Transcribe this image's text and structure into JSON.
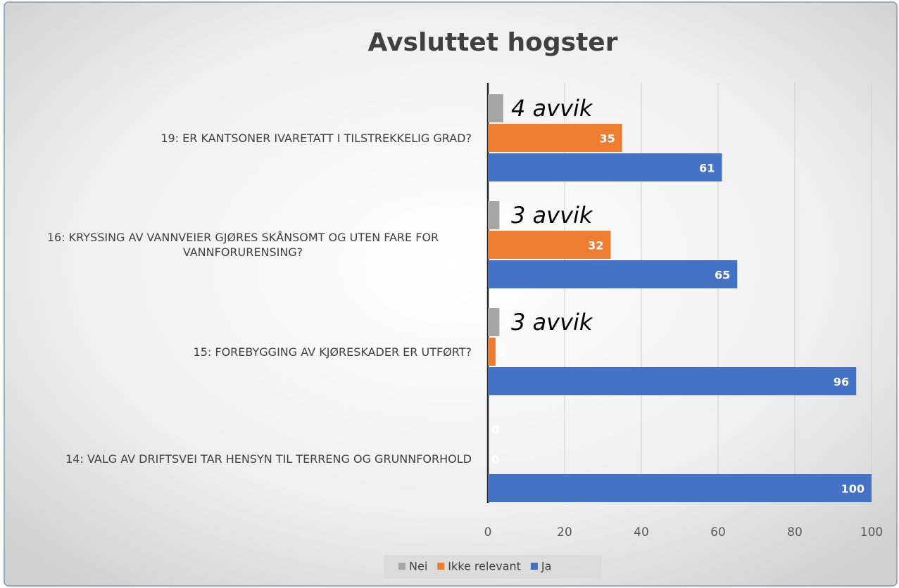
{
  "chart_data": {
    "type": "bar",
    "orientation": "horizontal",
    "title": "Avsluttet hogster",
    "categories": [
      "19: ER KANTSONER IVARETATT I TILSTREKKELIG GRAD?",
      "16: KRYSSING AV VANNVEIER GJØRES SKÅNSOMT OG UTEN FARE FOR VANNFORURENSING?",
      "15: FOREBYGGING AV KJØRESKADER ER UTFØRT?",
      "14: VALG AV DRIFTSVEI TAR HENSYN TIL TERRENG OG GRUNNFORHOLD"
    ],
    "series": [
      {
        "name": "Nei",
        "color": "#a5a5a5",
        "values": [
          4,
          3,
          3,
          0
        ]
      },
      {
        "name": "Ikke relevant",
        "color": "#ed7d31",
        "values": [
          35,
          32,
          2,
          0
        ]
      },
      {
        "name": "Ja",
        "color": "#4472c4",
        "values": [
          61,
          65,
          96,
          100
        ]
      }
    ],
    "annotations": [
      "4 avvik",
      "3 avvik",
      "3 avvik"
    ],
    "xlim": [
      0,
      100
    ],
    "xticks": [
      0,
      20,
      40,
      60,
      80,
      100
    ],
    "grid": true,
    "legend": "bottom"
  }
}
